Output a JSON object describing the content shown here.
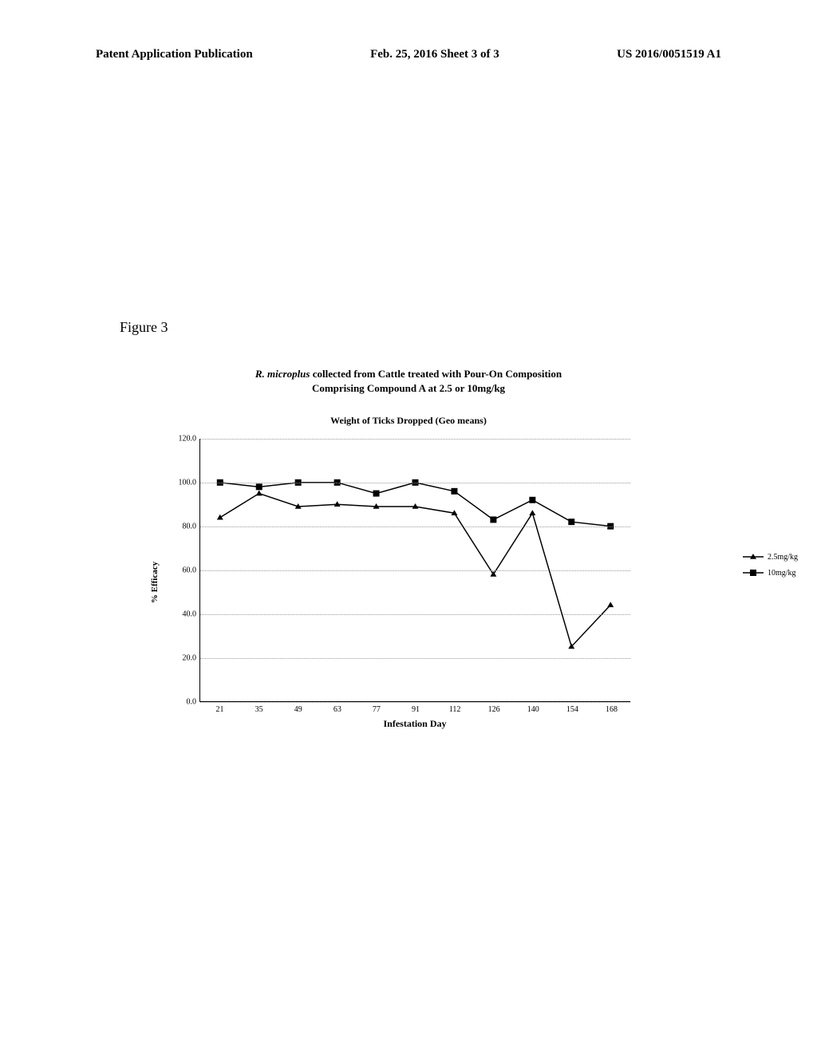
{
  "header": {
    "left": "Patent Application Publication",
    "center": "Feb. 25, 2016  Sheet 3 of 3",
    "right": "US 2016/0051519 A1"
  },
  "figure_label": "Figure 3",
  "chart": {
    "type": "line",
    "title_line1_italic": "R. microplus",
    "title_line1_rest": " collected from Cattle treated with Pour-On Composition",
    "title_line2": "Comprising  Compound  A at 2.5 or 10mg/kg",
    "subtitle": "Weight of Ticks Dropped (Geo means)",
    "y_axis_label": "% Efficacy",
    "x_axis_label": "Infestation Day",
    "ylim": [
      0,
      120
    ],
    "ytick_step": 20,
    "y_ticks": [
      0.0,
      20.0,
      40.0,
      60.0,
      80.0,
      100.0,
      120.0
    ],
    "x_categories": [
      "21",
      "35",
      "49",
      "63",
      "77",
      "91",
      "112",
      "126",
      "140",
      "154",
      "168"
    ],
    "series": [
      {
        "name": "2.5mg/kg",
        "marker": "triangle",
        "color": "#000000",
        "values": [
          84,
          95,
          89,
          90,
          89,
          89,
          86,
          58,
          86,
          25,
          44
        ]
      },
      {
        "name": "10mg/kg",
        "marker": "square",
        "color": "#000000",
        "values": [
          100,
          98,
          100,
          100,
          95,
          100,
          96,
          83,
          92,
          82,
          80
        ]
      }
    ],
    "line_width": 1.5,
    "marker_size": 6,
    "background_color": "#ffffff",
    "grid_color": "#999999"
  }
}
